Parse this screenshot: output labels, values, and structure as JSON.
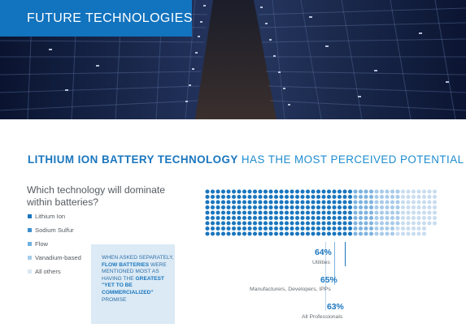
{
  "hero": {
    "title": "FUTURE TECHNOLOGIES",
    "colors": {
      "badge": "#1273be",
      "background": "#0c1426"
    }
  },
  "headline": {
    "bold": "LITHIUM ION BATTERY TECHNOLOGY",
    "rest": "HAS THE MOST PERCEIVED POTENTIAL"
  },
  "question": "Which technology will dominate within batteries?",
  "legend": [
    {
      "label": "Lithium Ion",
      "color": "#1a76be"
    },
    {
      "label": "Sodium Sulfur",
      "color": "#3d8fce"
    },
    {
      "label": "Flow",
      "color": "#6fb0de"
    },
    {
      "label": "Vanadium-based",
      "color": "#a7cdea"
    },
    {
      "label": "All others",
      "color": "#d8e7f3"
    }
  ],
  "callout": {
    "line1": "WHEN ASKED SEPARATELY,",
    "bold1": "FLOW BATTERIES",
    "line2": "WERE MENTIONED MOST AS HAVING THE",
    "bold2": "GREATEST \"YET TO BE COMMERCIALIZED\"",
    "line3": "PROMISE"
  },
  "stats": [
    {
      "percent": "64%",
      "label": "Utilities"
    },
    {
      "percent": "65%",
      "label": "Manufacturers, Developers, IPPs"
    },
    {
      "percent": "63%",
      "label": "All Professionals"
    }
  ],
  "dot_chart": {
    "dot_color_strong": "#1a76be",
    "dot_color_light": "#c9ddef",
    "strong_share": 0.64
  }
}
